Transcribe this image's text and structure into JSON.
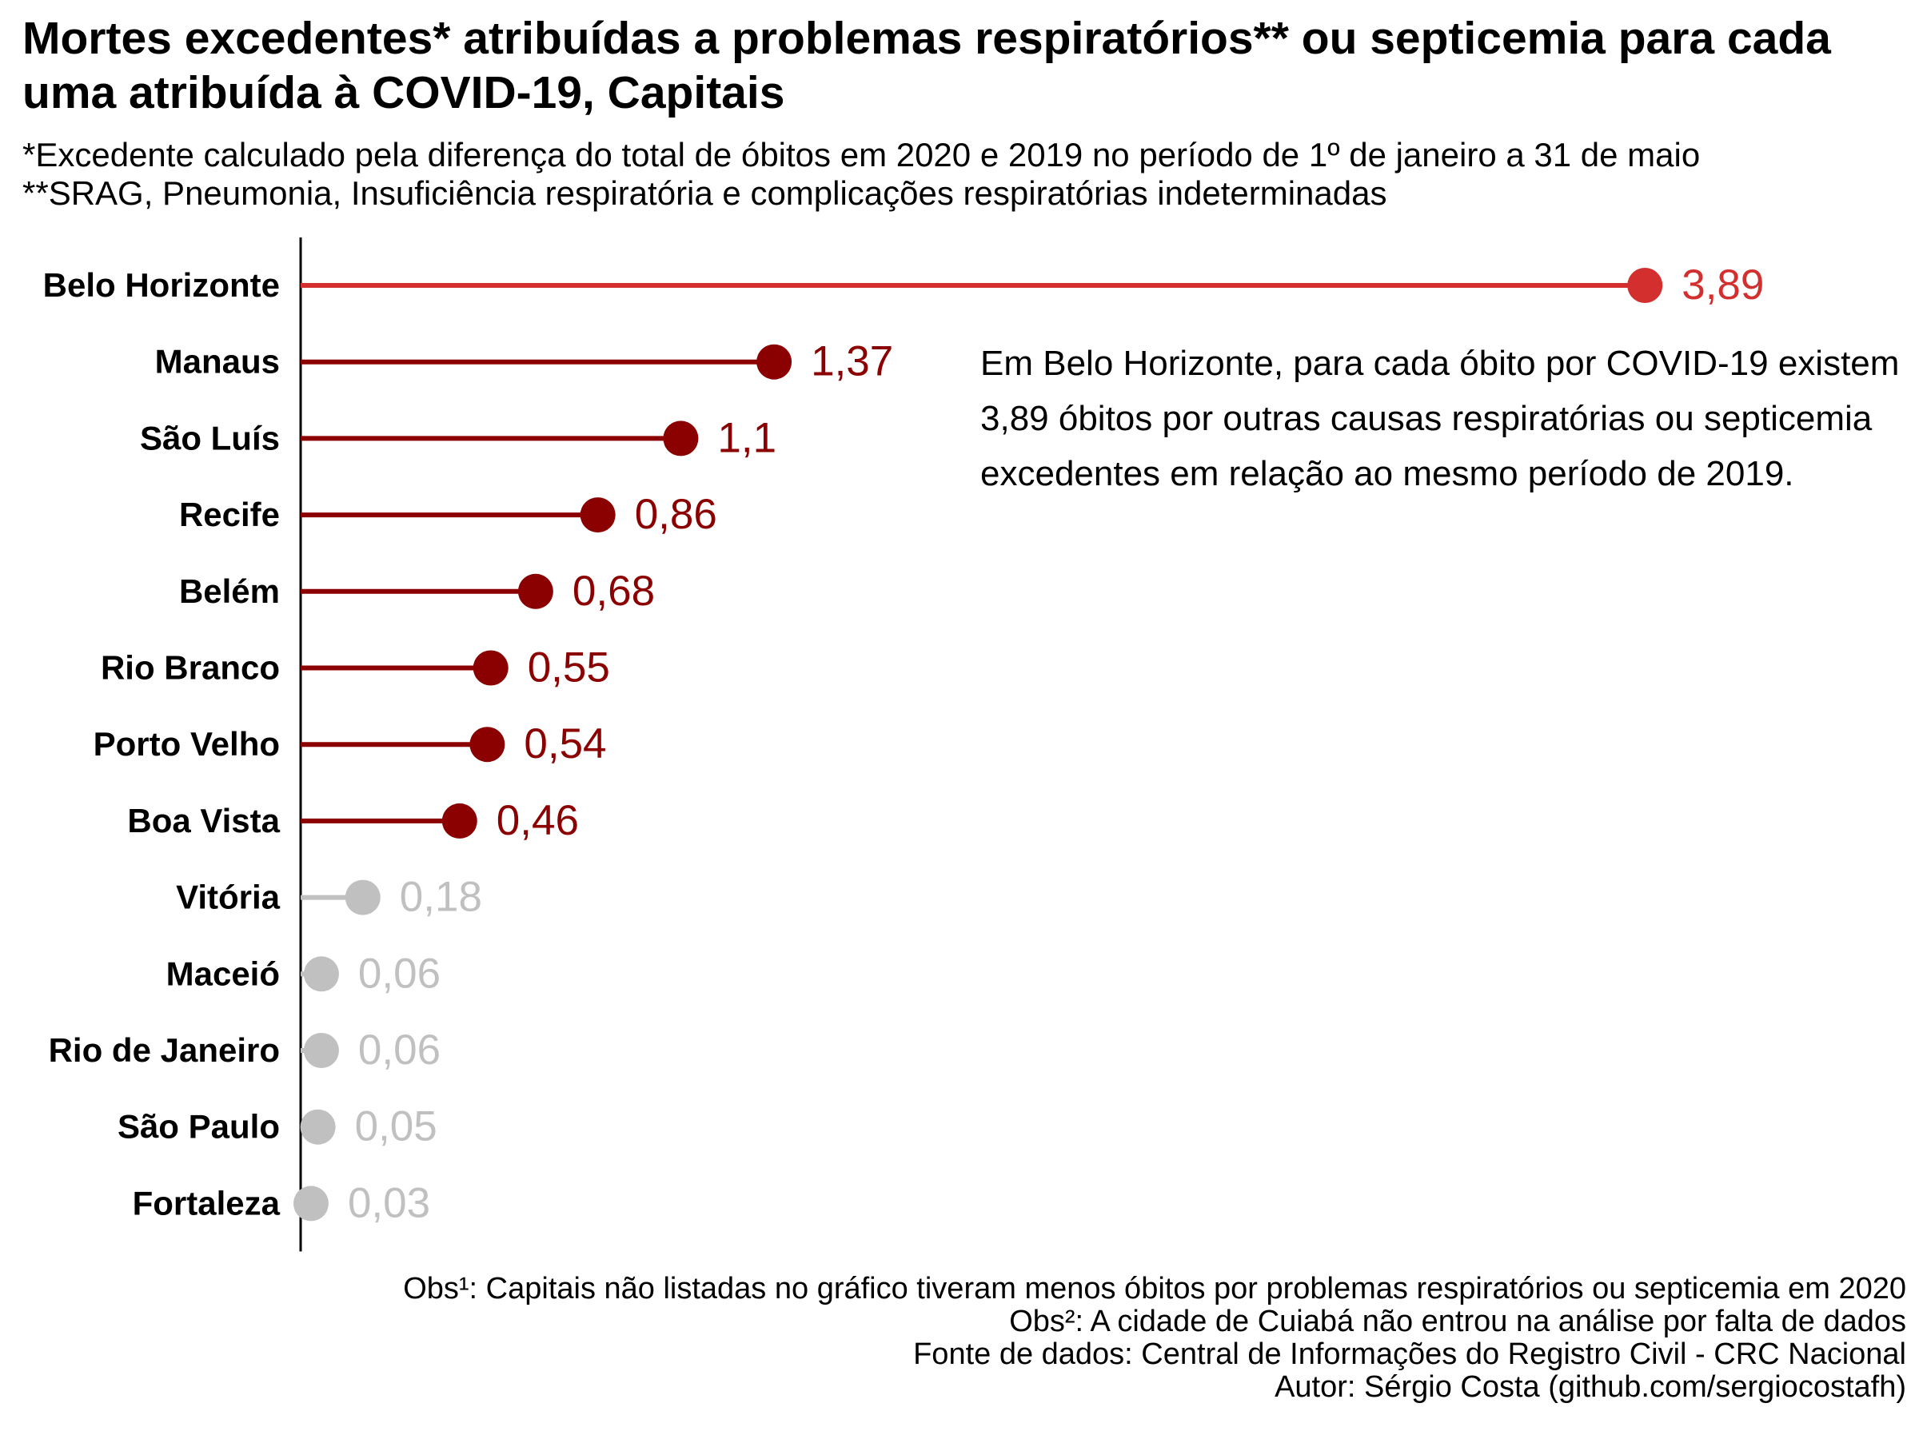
{
  "title": "Mortes excedentes* atribuídas a problemas respiratórios** ou septicemia para cada uma atribuída à COVID-19, Capitais",
  "subtitle": [
    "*Excedente calculado pela diferença do total de óbitos em 2020 e 2019 no período de 1º de janeiro a 31 de maio",
    "**SRAG, Pneumonia, Insuficiência respiratória e complicações respiratórias indeterminadas"
  ],
  "annotation": "Em Belo Horizonte, para cada óbito por COVID-19 existem 3,89 óbitos por outras causas respiratórias ou septicemia excedentes em relação ao mesmo período de 2019.",
  "caption": [
    "Obs¹: Capitais não listadas no gráfico tiveram menos óbitos por problemas respiratórios ou septicemia em 2020",
    "Obs²: A cidade de Cuiabá não entrou na análise por falta de dados",
    "Fonte de dados: Central de Informações do Registro Civil - CRC Nacional",
    "Autor: Sérgio Costa (github.com/sergiocostafh)"
  ],
  "colors": {
    "highlight": "#d32f2f",
    "high": "#8b0000",
    "low": "#c0c0c0",
    "axis": "#000000"
  },
  "chart_data": {
    "type": "lollipop",
    "orientation": "horizontal",
    "title": "Mortes excedentes* atribuídas a problemas respiratórios** ou septicemia para cada uma atribuída à COVID-19, Capitais",
    "xlabel": "",
    "ylabel": "",
    "xlim": [
      0,
      4.1
    ],
    "grid": false,
    "legend": "none",
    "categories": [
      "Belo Horizonte",
      "Manaus",
      "São Luís",
      "Recife",
      "Belém",
      "Rio Branco",
      "Porto Velho",
      "Boa Vista",
      "Vitória",
      "Maceió",
      "Rio de Janeiro",
      "São Paulo",
      "Fortaleza"
    ],
    "values": [
      3.89,
      1.37,
      1.1,
      0.86,
      0.68,
      0.55,
      0.54,
      0.46,
      0.18,
      0.06,
      0.06,
      0.05,
      0.03
    ],
    "labels": [
      "3,89",
      "1,37",
      "1,1",
      "0,86",
      "0,68",
      "0,55",
      "0,54",
      "0,46",
      "0,18",
      "0,06",
      "0,06",
      "0,05",
      "0,03"
    ],
    "color_groups": [
      "highlight",
      "high",
      "high",
      "high",
      "high",
      "high",
      "high",
      "high",
      "low",
      "low",
      "low",
      "low",
      "low"
    ]
  }
}
